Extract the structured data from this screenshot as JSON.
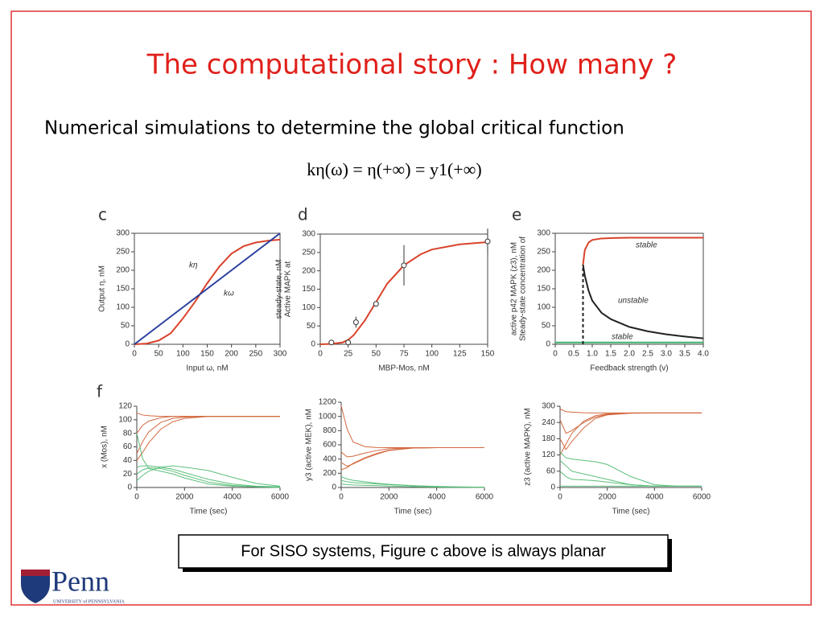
{
  "title": "The computational story : How many ?",
  "subtitle": "Numerical simulations to determine the global critical function",
  "formula": "kη(ω) = η(+∞) = y1(+∞)",
  "panel_labels": [
    "c",
    "d",
    "e",
    "f"
  ],
  "note": "For SISO systems, Figure c above is always planar",
  "logo": {
    "name": "Penn",
    "subtitle": "UNIVERSITY of PENNSYLVANIA"
  },
  "chart_data": [
    {
      "type": "line",
      "xlabel": "Input ω, nM",
      "ylabel": "Output η, nM",
      "xlim": [
        0,
        300
      ],
      "ylim": [
        0,
        300
      ],
      "xticks": [
        0,
        50,
        100,
        150,
        200,
        250,
        300
      ],
      "yticks": [
        0,
        50,
        100,
        150,
        200,
        250,
        300
      ],
      "x": [
        0,
        25,
        50,
        75,
        100,
        125,
        150,
        175,
        200,
        225,
        250,
        275,
        300
      ],
      "annotations": [
        "kη",
        "kω"
      ],
      "series": [
        {
          "color": "#d9432a",
          "values": [
            0,
            2,
            10,
            30,
            70,
            115,
            165,
            210,
            245,
            265,
            275,
            280,
            283
          ]
        },
        {
          "color": "#2a3f9e",
          "values": [
            0,
            25,
            50,
            75,
            100,
            125,
            150,
            175,
            200,
            225,
            250,
            275,
            300
          ]
        }
      ]
    },
    {
      "type": "line",
      "xlabel": "MBP-Mos, nM",
      "ylabel": [
        "Active MAPK at",
        "steady-state, nM"
      ],
      "xlim": [
        0,
        150
      ],
      "ylim": [
        0,
        300
      ],
      "xticks": [
        0,
        25,
        50,
        75,
        100,
        125,
        150
      ],
      "yticks": [
        0,
        50,
        100,
        150,
        200,
        250,
        300
      ],
      "series": [
        {
          "color": "#d9432a",
          "x": [
            0,
            10,
            20,
            25,
            30,
            40,
            50,
            60,
            75,
            90,
            100,
            125,
            150
          ],
          "values": [
            0,
            1,
            5,
            12,
            25,
            65,
            115,
            165,
            215,
            245,
            258,
            272,
            278
          ]
        },
        {
          "color": "#333333",
          "marker": "circle",
          "line": false,
          "x": [
            10,
            25,
            32,
            50,
            75,
            150
          ],
          "values": [
            5,
            5,
            60,
            110,
            215,
            280
          ],
          "errors": [
            null,
            null,
            15,
            null,
            55,
            35
          ]
        }
      ]
    },
    {
      "type": "line",
      "xlabel": "Feedback strength (v)",
      "ylabel": [
        "Steady-state concentration of",
        "active p42 MAPK (z3), nM"
      ],
      "xlim": [
        0,
        4
      ],
      "ylim": [
        0,
        300
      ],
      "xticks": [
        0,
        0.5,
        {
          "value": 1,
          "label": "1.0"
        },
        1.5,
        {
          "value": 2,
          "label": "2.0"
        },
        2.5,
        {
          "value": 3,
          "label": "3.0"
        },
        3.5,
        {
          "value": 4,
          "label": "4.0"
        }
      ],
      "yticks": [
        0,
        50,
        100,
        150,
        200,
        250,
        300
      ],
      "annotations": [
        "stable",
        "unstable",
        "stable"
      ],
      "series": [
        {
          "color": "#d9432a",
          "x": [
            0.75,
            0.8,
            0.9,
            1.0,
            1.25,
            1.5,
            2,
            3,
            4
          ],
          "values": [
            215,
            255,
            275,
            282,
            286,
            287,
            288,
            288,
            288
          ]
        },
        {
          "color": "#222222",
          "x": [
            0.75,
            0.8,
            0.9,
            1.0,
            1.25,
            1.5,
            2,
            2.5,
            3,
            3.5,
            4
          ],
          "values": [
            215,
            185,
            145,
            118,
            85,
            68,
            47,
            35,
            27,
            21,
            16
          ]
        },
        {
          "color": "#3cb36a",
          "x": [
            0,
            4
          ],
          "values": [
            5,
            5
          ]
        },
        {
          "color": "#222222",
          "dash": true,
          "x": [
            0.75,
            0.75
          ],
          "values": [
            0,
            215
          ]
        }
      ]
    },
    {
      "type": "line",
      "xlabel": "Time (sec)",
      "ylabel": "x (Mos), nM",
      "xlim": [
        0,
        6000
      ],
      "ylim": [
        0,
        120
      ],
      "xticks": [
        0,
        2000,
        4000,
        6000
      ],
      "yticks": [
        0,
        20,
        40,
        60,
        80,
        100,
        120
      ],
      "x": [
        0,
        250,
        500,
        1000,
        1500,
        2000,
        3000,
        4000,
        5000,
        6000
      ],
      "series": [
        {
          "color": "#d2693f",
          "values": [
            110,
            107,
            106,
            105,
            105,
            105,
            105,
            105,
            105,
            105
          ]
        },
        {
          "color": "#d2693f",
          "values": [
            80,
            92,
            98,
            103,
            105,
            105,
            105,
            105,
            105,
            105
          ]
        },
        {
          "color": "#d2693f",
          "values": [
            50,
            68,
            82,
            96,
            102,
            104,
            105,
            105,
            105,
            105
          ]
        },
        {
          "color": "#d2693f",
          "values": [
            40,
            52,
            66,
            86,
            97,
            102,
            105,
            105,
            105,
            105
          ]
        },
        {
          "color": "#5cbf7c",
          "values": [
            30,
            32,
            32,
            30,
            27,
            22,
            12,
            5,
            2,
            1
          ]
        },
        {
          "color": "#5cbf7c",
          "values": [
            20,
            26,
            29,
            28,
            24,
            18,
            8,
            3,
            1,
            0
          ]
        },
        {
          "color": "#5cbf7c",
          "values": [
            80,
            42,
            28,
            24,
            20,
            14,
            5,
            2,
            1,
            0
          ]
        },
        {
          "color": "#5cbf7c",
          "values": [
            10,
            18,
            24,
            30,
            32,
            30,
            25,
            15,
            6,
            2
          ]
        }
      ]
    },
    {
      "type": "line",
      "xlabel": "Time (sec)",
      "ylabel": "y3 (active MEK), nM",
      "xlim": [
        0,
        6000
      ],
      "ylim": [
        0,
        1200
      ],
      "xticks": [
        0,
        2000,
        4000,
        6000
      ],
      "yticks": [
        0,
        200,
        400,
        600,
        800,
        1000,
        1200
      ],
      "x": [
        0,
        250,
        500,
        1000,
        1500,
        2000,
        3000,
        4000,
        5000,
        6000
      ],
      "series": [
        {
          "color": "#d2693f",
          "values": [
            1150,
            820,
            640,
            575,
            562,
            560,
            560,
            560,
            560,
            560
          ]
        },
        {
          "color": "#d2693f",
          "values": [
            350,
            300,
            330,
            410,
            470,
            520,
            555,
            560,
            560,
            560
          ]
        },
        {
          "color": "#d2693f",
          "values": [
            500,
            430,
            440,
            485,
            520,
            545,
            558,
            560,
            560,
            560
          ]
        },
        {
          "color": "#d2693f",
          "values": [
            250,
            280,
            340,
            420,
            480,
            525,
            555,
            560,
            560,
            560
          ]
        },
        {
          "color": "#5cbf7c",
          "values": [
            150,
            120,
            100,
            80,
            60,
            45,
            25,
            12,
            6,
            3
          ]
        },
        {
          "color": "#5cbf7c",
          "values": [
            100,
            80,
            70,
            60,
            50,
            40,
            25,
            15,
            8,
            4
          ]
        },
        {
          "color": "#5cbf7c",
          "values": [
            50,
            40,
            35,
            30,
            25,
            20,
            12,
            6,
            3,
            2
          ]
        }
      ]
    },
    {
      "type": "line",
      "xlabel": "Time (sec)",
      "ylabel": "z3 (active MAPK), nM",
      "xlim": [
        0,
        6000
      ],
      "ylim": [
        0,
        300
      ],
      "xticks": [
        0,
        2000,
        4000,
        6000
      ],
      "yticks": [
        0,
        60,
        120,
        180,
        240,
        300
      ],
      "x": [
        0,
        250,
        500,
        1000,
        1500,
        2000,
        3000,
        4000,
        5000,
        6000
      ],
      "series": [
        {
          "color": "#d2693f",
          "values": [
            290,
            280,
            278,
            276,
            275,
            275,
            275,
            275,
            275,
            275
          ]
        },
        {
          "color": "#d2693f",
          "values": [
            180,
            140,
            170,
            220,
            255,
            268,
            274,
            275,
            275,
            275
          ]
        },
        {
          "color": "#d2693f",
          "values": [
            250,
            200,
            210,
            240,
            260,
            270,
            275,
            275,
            275,
            275
          ]
        },
        {
          "color": "#d2693f",
          "values": [
            120,
            160,
            200,
            245,
            265,
            272,
            275,
            275,
            275,
            275
          ]
        },
        {
          "color": "#5cbf7c",
          "values": [
            130,
            110,
            105,
            100,
            95,
            85,
            40,
            10,
            5,
            5
          ]
        },
        {
          "color": "#5cbf7c",
          "values": [
            100,
            80,
            60,
            50,
            40,
            30,
            10,
            5,
            5,
            5
          ]
        },
        {
          "color": "#5cbf7c",
          "values": [
            60,
            40,
            30,
            28,
            25,
            20,
            10,
            5,
            5,
            5
          ]
        },
        {
          "color": "#5cbf7c",
          "values": [
            5,
            5,
            5,
            5,
            5,
            5,
            5,
            5,
            5,
            5
          ]
        }
      ]
    }
  ]
}
